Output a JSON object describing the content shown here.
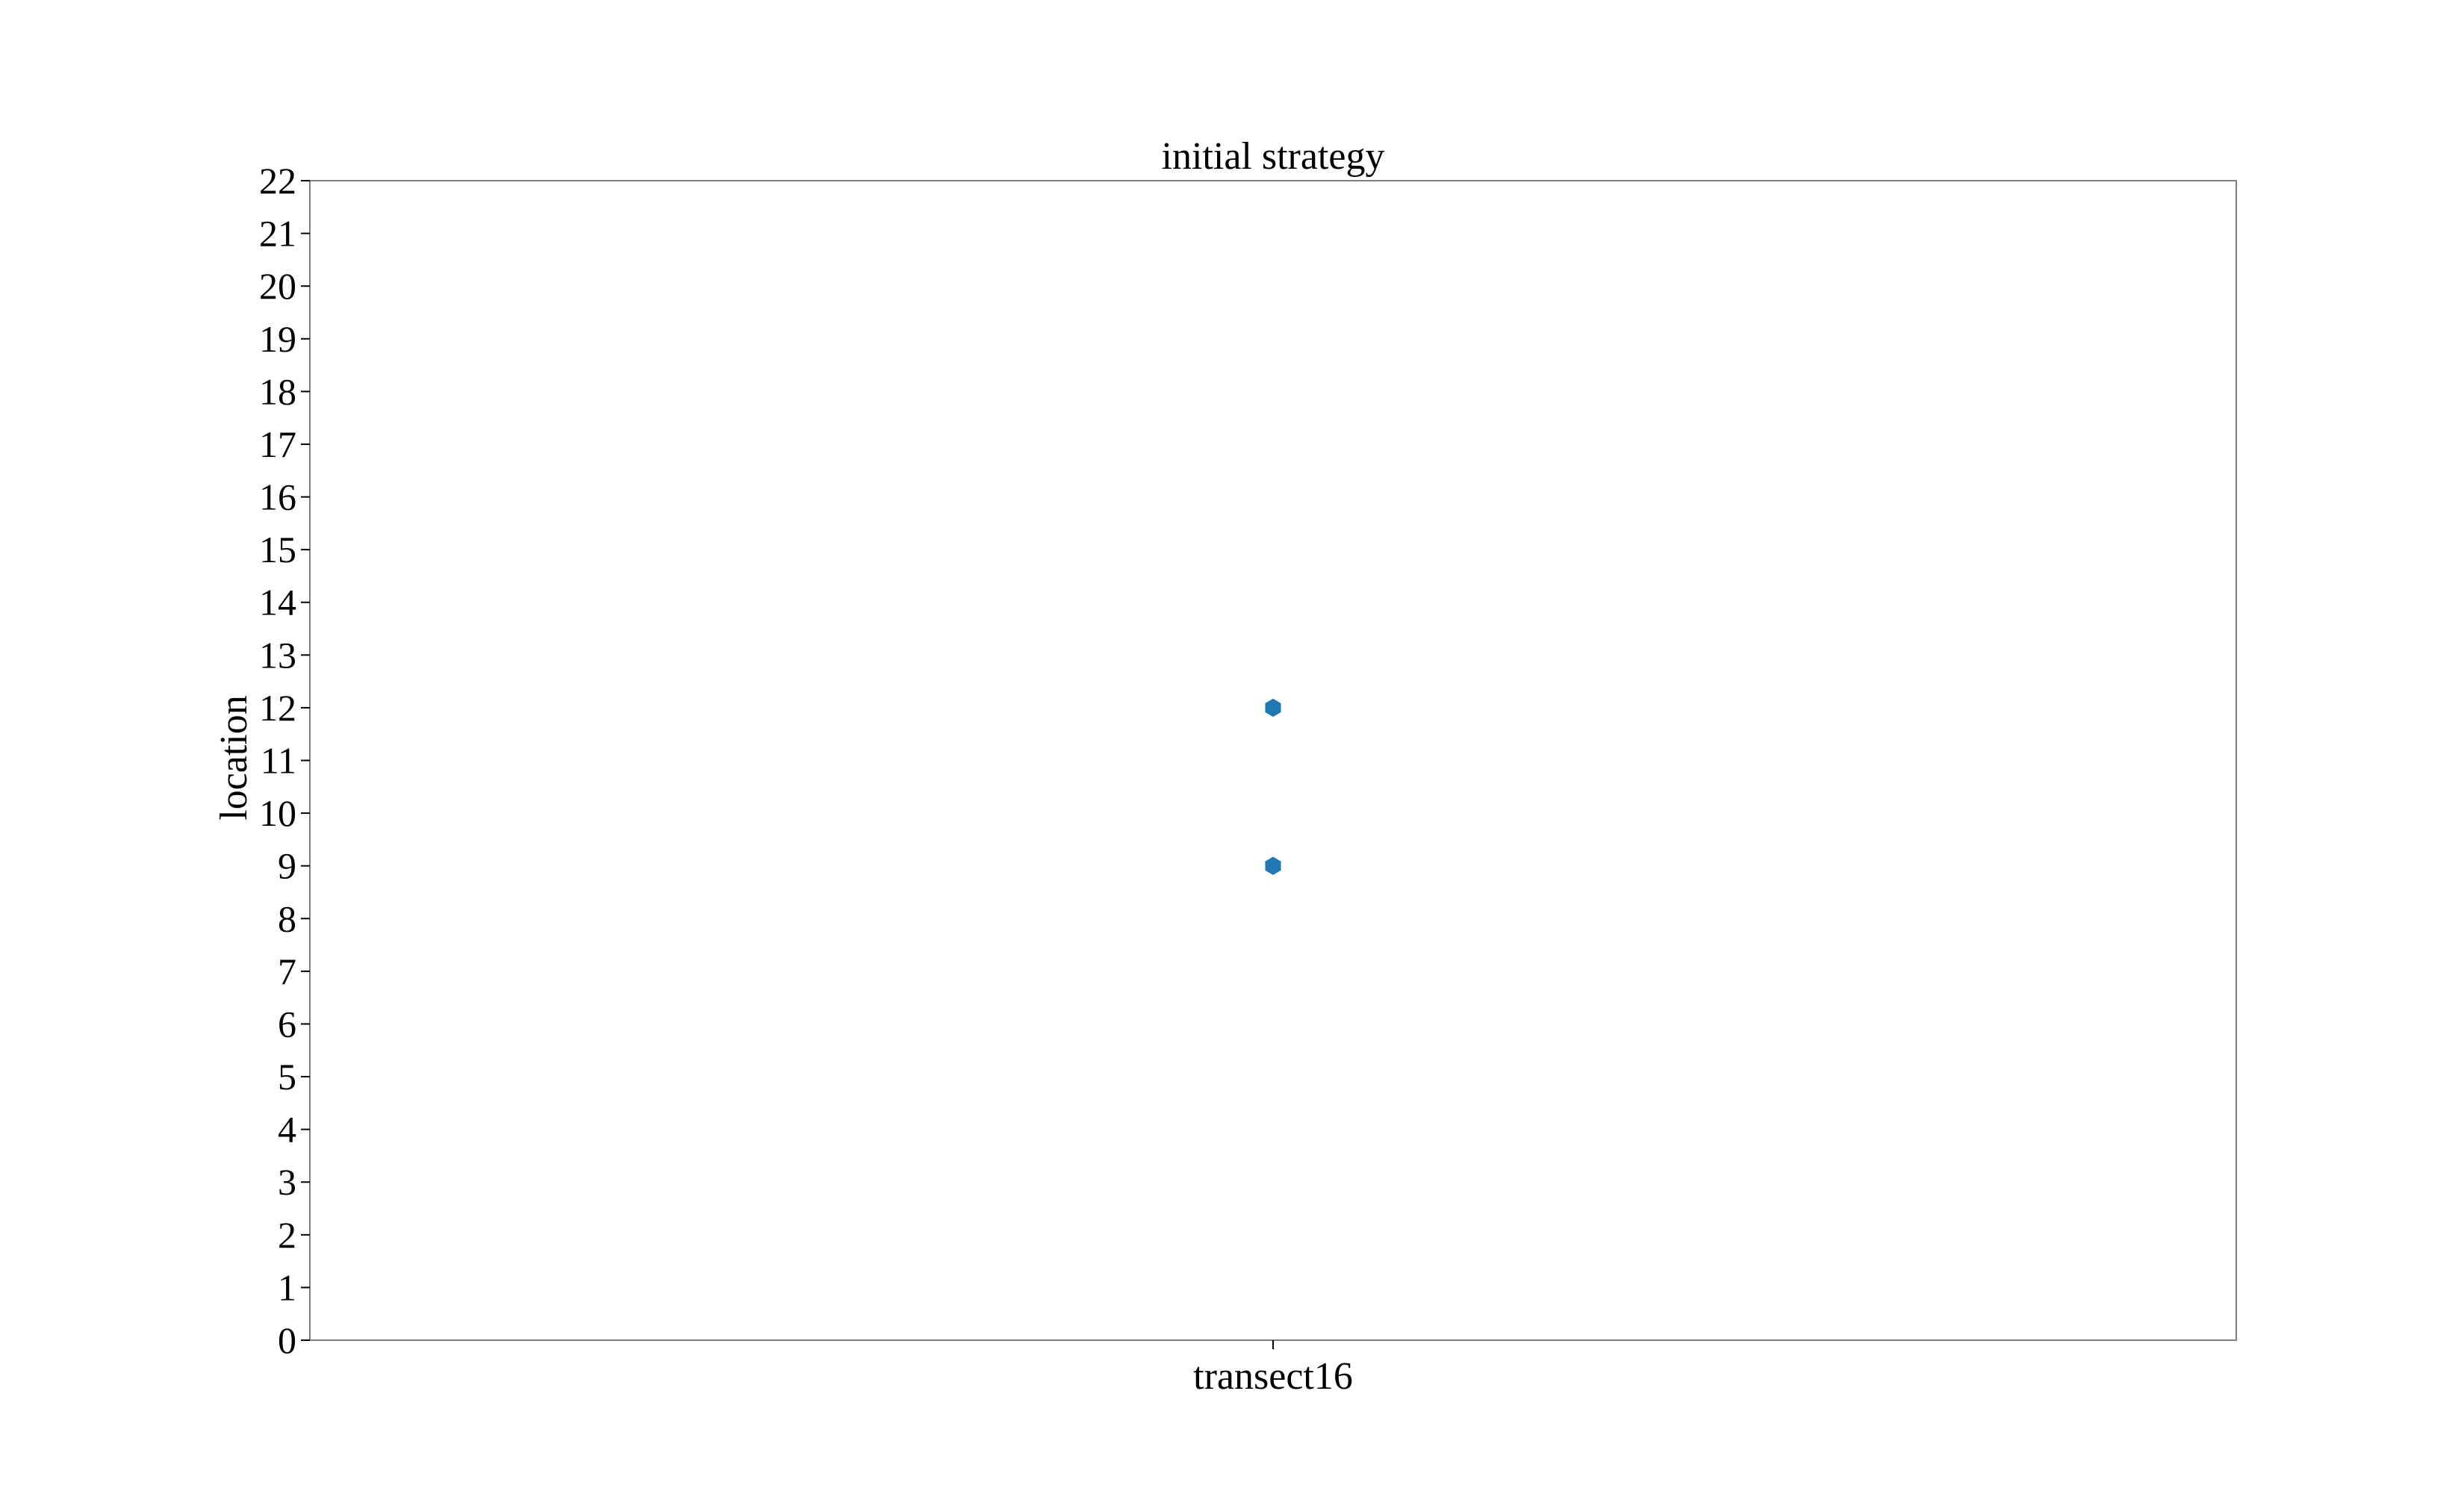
{
  "chart_data": {
    "type": "scatter",
    "title": "initial strategy",
    "xlabel": "",
    "ylabel": "location",
    "categories": [
      "transect16"
    ],
    "ylim": [
      0,
      22
    ],
    "yticks": [
      0,
      1,
      2,
      3,
      4,
      5,
      6,
      7,
      8,
      9,
      10,
      11,
      12,
      13,
      14,
      15,
      16,
      17,
      18,
      19,
      20,
      21,
      22
    ],
    "grid": false,
    "legend": "none",
    "marker": "hexagon",
    "series": [
      {
        "color": "#1f77b4",
        "points": [
          {
            "x": "transect16",
            "y": 9
          },
          {
            "x": "transect16",
            "y": 12
          }
        ]
      }
    ]
  }
}
